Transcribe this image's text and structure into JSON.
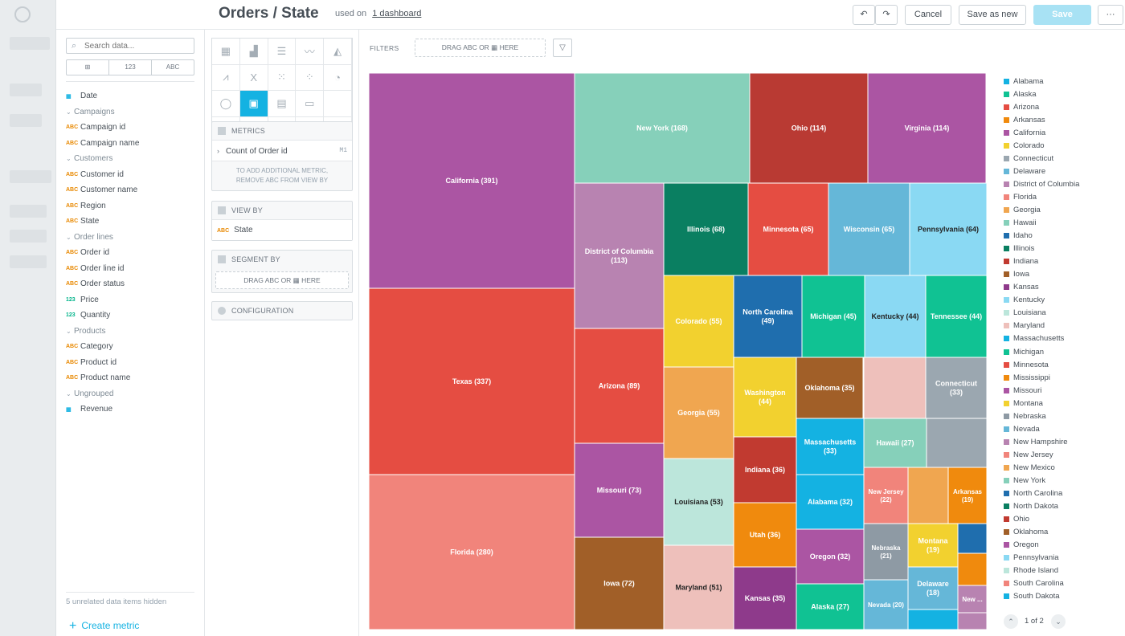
{
  "header": {
    "title": "Orders / State",
    "used_on_prefix": "used on",
    "used_on_link": "1 dashboard",
    "undo_icon": "↶",
    "redo_icon": "↷",
    "cancel_label": "Cancel",
    "save_as_new_label": "Save as new",
    "save_label": "Save",
    "more_icon": "···"
  },
  "catalog": {
    "search_placeholder": "Search data...",
    "type_filters": [
      "⊞",
      "123",
      "ABC"
    ],
    "items": [
      {
        "kind": "item",
        "type": "date",
        "label": "Date"
      },
      {
        "kind": "group",
        "label": "Campaigns"
      },
      {
        "kind": "item",
        "type": "abc",
        "label": "Campaign id"
      },
      {
        "kind": "item",
        "type": "abc",
        "label": "Campaign name"
      },
      {
        "kind": "group",
        "label": "Customers"
      },
      {
        "kind": "item",
        "type": "abc",
        "label": "Customer id"
      },
      {
        "kind": "item",
        "type": "abc",
        "label": "Customer name"
      },
      {
        "kind": "item",
        "type": "abc",
        "label": "Region"
      },
      {
        "kind": "item",
        "type": "abc",
        "label": "State"
      },
      {
        "kind": "group",
        "label": "Order lines"
      },
      {
        "kind": "item",
        "type": "abc",
        "label": "Order id"
      },
      {
        "kind": "item",
        "type": "abc",
        "label": "Order line id"
      },
      {
        "kind": "item",
        "type": "abc",
        "label": "Order status"
      },
      {
        "kind": "item",
        "type": "num",
        "label": "Price"
      },
      {
        "kind": "item",
        "type": "num",
        "label": "Quantity"
      },
      {
        "kind": "group",
        "label": "Products"
      },
      {
        "kind": "item",
        "type": "abc",
        "label": "Category"
      },
      {
        "kind": "item",
        "type": "abc",
        "label": "Product id"
      },
      {
        "kind": "item",
        "type": "abc",
        "label": "Product name"
      },
      {
        "kind": "group",
        "label": "Ungrouped"
      },
      {
        "kind": "item",
        "type": "metric",
        "label": "Revenue"
      }
    ],
    "type_badges": {
      "abc": "ABC",
      "num": "123",
      "date": "▦",
      "metric": "▦"
    },
    "hidden_note": "5 unrelated data items hidden",
    "create_metric_label": "Create metric"
  },
  "buckets": {
    "metrics_title": "METRICS",
    "metric_item": "Count of Order id",
    "metric_tag": "M1",
    "metrics_note_line1": "TO ADD ADDITIONAL METRIC,",
    "metrics_note_line2": "REMOVE ABC FROM VIEW BY",
    "view_by_title": "VIEW BY",
    "view_by_item": "State",
    "segment_by_title": "SEGMENT BY",
    "segment_drop": "DRAG ABC OR ▦ HERE",
    "configuration_title": "CONFIGURATION"
  },
  "filters": {
    "label": "FILTERS",
    "drop_text": "DRAG ABC OR ▦ HERE",
    "filter_icon": "▽"
  },
  "pager": {
    "text": "1 of 2",
    "up_icon": "⌃",
    "down_icon": "⌄"
  },
  "chart_data": {
    "type": "treemap",
    "metric": "Count of Order id",
    "view_by": "State",
    "rows": [
      {
        "label": "California",
        "value": 391,
        "color": "#AB55A3"
      },
      {
        "label": "Texas",
        "value": 337,
        "color": "#E54D42"
      },
      {
        "label": "Florida",
        "value": 280,
        "color": "#F1847B"
      },
      {
        "label": "New York",
        "value": 168,
        "color": "#86D0BA"
      },
      {
        "label": "Ohio",
        "value": 114,
        "color": "#B93A33"
      },
      {
        "label": "Virginia",
        "value": 114,
        "color": "#AB55A3"
      },
      {
        "label": "District of Columbia",
        "value": 113,
        "color": "#B883B1"
      },
      {
        "label": "Arizona",
        "value": 89,
        "color": "#E54D42"
      },
      {
        "label": "Missouri",
        "value": 73,
        "color": "#AB55A3"
      },
      {
        "label": "Iowa",
        "value": 72,
        "color": "#A15F28"
      },
      {
        "label": "Illinois",
        "value": 68,
        "color": "#0A7F61"
      },
      {
        "label": "Minnesota",
        "value": 65,
        "color": "#E54D42"
      },
      {
        "label": "Wisconsin",
        "value": 65,
        "color": "#65B7D8"
      },
      {
        "label": "Pennsylvania",
        "value": 64,
        "color": "#8AD9F3"
      },
      {
        "label": "Colorado",
        "value": 55,
        "color": "#F2D12F"
      },
      {
        "label": "Georgia",
        "value": 55,
        "color": "#F0A650"
      },
      {
        "label": "Louisiana",
        "value": 53,
        "color": "#BCE6DB"
      },
      {
        "label": "Maryland",
        "value": 51,
        "color": "#EEC0BB"
      },
      {
        "label": "North Carolina",
        "value": 49,
        "color": "#1F6EAE"
      },
      {
        "label": "Michigan",
        "value": 45,
        "color": "#10C293"
      },
      {
        "label": "Kentucky",
        "value": 44,
        "color": "#8AD9F3"
      },
      {
        "label": "Tennessee",
        "value": 44,
        "color": "#10C293"
      },
      {
        "label": "Washington",
        "value": 44,
        "color": "#F2D12F"
      },
      {
        "label": "Oklahoma",
        "value": 35,
        "color": "#A15F28"
      },
      {
        "label": "Connecticut",
        "value": 33,
        "color": "#9BA7B0"
      },
      {
        "label": "Massachusetts",
        "value": 33,
        "color": "#14B2E2"
      },
      {
        "label": "Indiana",
        "value": 36,
        "color": "#C13A30"
      },
      {
        "label": "Hawaii",
        "value": 27,
        "color": "#86D0BA"
      },
      {
        "label": "Alabama",
        "value": 32,
        "color": "#14B2E2"
      },
      {
        "label": "New Jersey",
        "value": 22,
        "color": "#F1847B"
      },
      {
        "label": "Arkansas",
        "value": 19,
        "color": "#F08A0D"
      },
      {
        "label": "Utah",
        "value": 36,
        "color": "#F08A0D"
      },
      {
        "label": "Oregon",
        "value": 32,
        "color": "#AB55A3"
      },
      {
        "label": "Nebraska",
        "value": 21,
        "color": "#8E9AA4"
      },
      {
        "label": "Montana",
        "value": 19,
        "color": "#F2D12F"
      },
      {
        "label": "Kansas",
        "value": 35,
        "color": "#8E3A8B"
      },
      {
        "label": "Alaska",
        "value": 27,
        "color": "#10C293"
      },
      {
        "label": "Nevada",
        "value": 20,
        "color": "#65B7D8"
      },
      {
        "label": "Delaware",
        "value": 18,
        "color": "#65B7D8"
      },
      {
        "label": "New ...",
        "value": null,
        "color": "#B883B1"
      }
    ],
    "unlabeled_tiles": [
      "#EEC0BB",
      "#9BA7B0",
      "#F0A650",
      "#1F6EAE",
      "#F08A0D",
      "#B883B1",
      "#14B2E2",
      "#0A7F61"
    ],
    "legend": [
      {
        "label": "Alabama",
        "color": "#14B2E2"
      },
      {
        "label": "Alaska",
        "color": "#10C293"
      },
      {
        "label": "Arizona",
        "color": "#E54D42"
      },
      {
        "label": "Arkansas",
        "color": "#F08A0D"
      },
      {
        "label": "California",
        "color": "#AB55A3"
      },
      {
        "label": "Colorado",
        "color": "#F2D12F"
      },
      {
        "label": "Connecticut",
        "color": "#9BA7B0"
      },
      {
        "label": "Delaware",
        "color": "#65B7D8"
      },
      {
        "label": "District of Columbia",
        "color": "#B883B1"
      },
      {
        "label": "Florida",
        "color": "#F1847B"
      },
      {
        "label": "Georgia",
        "color": "#F0A650"
      },
      {
        "label": "Hawaii",
        "color": "#86D0BA"
      },
      {
        "label": "Idaho",
        "color": "#1F6EAE"
      },
      {
        "label": "Illinois",
        "color": "#0A7F61"
      },
      {
        "label": "Indiana",
        "color": "#C13A30"
      },
      {
        "label": "Iowa",
        "color": "#A15F28"
      },
      {
        "label": "Kansas",
        "color": "#8E3A8B"
      },
      {
        "label": "Kentucky",
        "color": "#8AD9F3"
      },
      {
        "label": "Louisiana",
        "color": "#BCE6DB"
      },
      {
        "label": "Maryland",
        "color": "#EEC0BB"
      },
      {
        "label": "Massachusetts",
        "color": "#14B2E2"
      },
      {
        "label": "Michigan",
        "color": "#10C293"
      },
      {
        "label": "Minnesota",
        "color": "#E54D42"
      },
      {
        "label": "Mississippi",
        "color": "#F08A0D"
      },
      {
        "label": "Missouri",
        "color": "#AB55A3"
      },
      {
        "label": "Montana",
        "color": "#F2D12F"
      },
      {
        "label": "Nebraska",
        "color": "#8E9AA4"
      },
      {
        "label": "Nevada",
        "color": "#65B7D8"
      },
      {
        "label": "New Hampshire",
        "color": "#B883B1"
      },
      {
        "label": "New Jersey",
        "color": "#F1847B"
      },
      {
        "label": "New Mexico",
        "color": "#F0A650"
      },
      {
        "label": "New York",
        "color": "#86D0BA"
      },
      {
        "label": "North Carolina",
        "color": "#1F6EAE"
      },
      {
        "label": "North Dakota",
        "color": "#0A7F61"
      },
      {
        "label": "Ohio",
        "color": "#C13A30"
      },
      {
        "label": "Oklahoma",
        "color": "#A15F28"
      },
      {
        "label": "Oregon",
        "color": "#AB55A3"
      },
      {
        "label": "Pennsylvania",
        "color": "#8AD9F3"
      },
      {
        "label": "Rhode Island",
        "color": "#BCE6DB"
      },
      {
        "label": "South Carolina",
        "color": "#F1847B"
      },
      {
        "label": "South Dakota",
        "color": "#14B2E2"
      }
    ]
  }
}
